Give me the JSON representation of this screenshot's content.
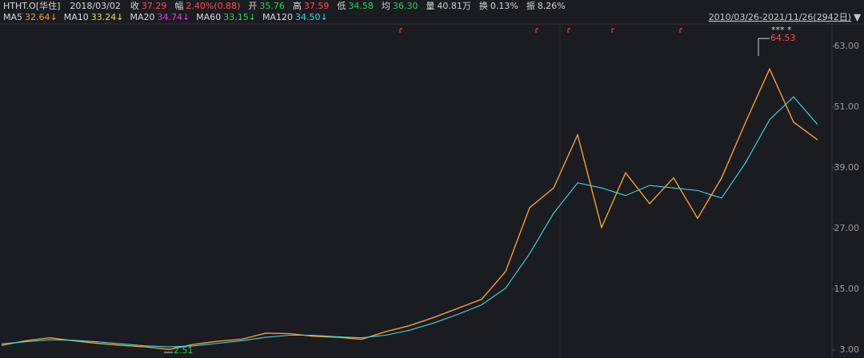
{
  "chart_data": {
    "type": "line",
    "symbol": "HTHT.O[华住]",
    "date": "2018/03/02",
    "quote": [
      {
        "label": "收",
        "value": "37.29",
        "color": "#ff4a4a"
      },
      {
        "label": "幅",
        "value": "2.40%(0.88)",
        "color": "#ff4a4a"
      },
      {
        "label": "开",
        "value": "35.76",
        "color": "#2fcf5a"
      },
      {
        "label": "高",
        "value": "37.59",
        "color": "#ff4a4a"
      },
      {
        "label": "低",
        "value": "34.58",
        "color": "#2fcf5a"
      },
      {
        "label": "均",
        "value": "36.30",
        "color": "#2fcf5a"
      },
      {
        "label": "量",
        "value": "40.81万",
        "color": "#d0d0d0"
      },
      {
        "label": "换",
        "value": "0.13%",
        "color": "#d0d0d0"
      },
      {
        "label": "振",
        "value": "8.26%",
        "color": "#d0d0d0"
      }
    ],
    "ma_legend": [
      {
        "name": "MA5",
        "value": "32.64↓",
        "color": "#f0a030"
      },
      {
        "name": "MA10",
        "value": "33.24↓",
        "color": "#e8e040"
      },
      {
        "name": "MA20",
        "value": "34.74↓",
        "color": "#e040e0"
      },
      {
        "name": "MA60",
        "value": "33.15↓",
        "color": "#30d050"
      },
      {
        "name": "MA120",
        "value": "34.50↓",
        "color": "#40d8e0"
      }
    ],
    "range": "2010/03/26-2021/11/26(2942日)",
    "series": [
      {
        "color": "#f0a030",
        "values": [
          3.9,
          4.8,
          5.4,
          4.8,
          4.3,
          3.9,
          3.6,
          3.1,
          4.1,
          4.7,
          5.1,
          6.3,
          6.2,
          5.7,
          5.5,
          5.1,
          6.6,
          7.8,
          9.4,
          11.2,
          13.0,
          18.5,
          31.1,
          35.0,
          45.5,
          27.2,
          38.0,
          31.9,
          37.0,
          29.0,
          37.0,
          48.0,
          58.5,
          48.0,
          44.5
        ]
      },
      {
        "color": "#40d8e0",
        "values": [
          4.2,
          4.6,
          5.0,
          4.9,
          4.6,
          4.2,
          3.8,
          3.6,
          3.8,
          4.3,
          4.8,
          5.5,
          5.9,
          5.9,
          5.6,
          5.4,
          5.9,
          6.9,
          8.3,
          10.0,
          11.9,
          15.2,
          22.0,
          30.0,
          36.0,
          35.0,
          33.5,
          35.5,
          35.0,
          34.5,
          33.0,
          40.0,
          48.5,
          53.0,
          47.5
        ]
      }
    ],
    "max_label": {
      "value": 64.53,
      "label": "64.53"
    },
    "min_label": {
      "value": 2.51,
      "label": "2.51"
    },
    "ylim": [
      1.4,
      67.4
    ],
    "yticks": [
      {
        "value": 63,
        "label": "63.00"
      },
      {
        "value": 51,
        "label": "51.00"
      },
      {
        "value": 39,
        "label": "39.00"
      },
      {
        "value": 27,
        "label": "27.00"
      },
      {
        "value": 15,
        "label": "15.00"
      },
      {
        "value": 3,
        "label": "3.00"
      }
    ]
  }
}
